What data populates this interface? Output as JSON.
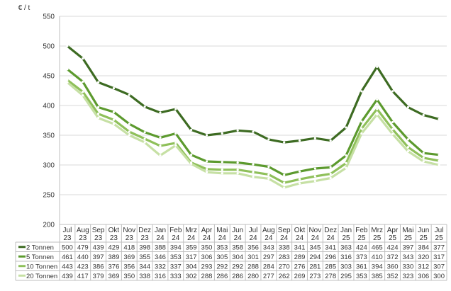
{
  "chart_data": {
    "type": "line",
    "ylabel": "€ / t",
    "ylim": [
      200,
      550
    ],
    "yticks": [
      200,
      250,
      300,
      350,
      400,
      450,
      500,
      550
    ],
    "grid": true,
    "legend": "data-table-below",
    "categories": [
      [
        "Jul",
        "23"
      ],
      [
        "Aug",
        "23"
      ],
      [
        "Sep",
        "23"
      ],
      [
        "Okt",
        "23"
      ],
      [
        "Nov",
        "23"
      ],
      [
        "Dez",
        "23"
      ],
      [
        "Jan",
        "24"
      ],
      [
        "Feb",
        "24"
      ],
      [
        "Mrz",
        "24"
      ],
      [
        "Apr",
        "24"
      ],
      [
        "Mai",
        "24"
      ],
      [
        "Jun",
        "24"
      ],
      [
        "Jul",
        "24"
      ],
      [
        "Aug",
        "24"
      ],
      [
        "Sep",
        "24"
      ],
      [
        "Okt",
        "24"
      ],
      [
        "Nov",
        "24"
      ],
      [
        "Dez",
        "24"
      ],
      [
        "Jan",
        "25"
      ],
      [
        "Feb",
        "25"
      ],
      [
        "Mrz",
        "25"
      ],
      [
        "Apr",
        "25"
      ],
      [
        "Mai",
        "25"
      ],
      [
        "Jun",
        "25"
      ],
      [
        "Jul",
        "25"
      ]
    ],
    "series": [
      {
        "name": "2 Tonnen",
        "color": "#3d6b22",
        "values": [
          500,
          479,
          439,
          429,
          418,
          398,
          388,
          394,
          359,
          350,
          353,
          358,
          356,
          343,
          338,
          341,
          345,
          341,
          363,
          424,
          465,
          424,
          397,
          384,
          377
        ]
      },
      {
        "name": "5 Tonnen",
        "color": "#5c9a2e",
        "values": [
          461,
          440,
          397,
          389,
          369,
          355,
          346,
          353,
          317,
          306,
          305,
          304,
          301,
          297,
          283,
          289,
          294,
          296,
          316,
          373,
          410,
          372,
          343,
          320,
          317
        ]
      },
      {
        "name": "10 Tonnen",
        "color": "#8fc05a",
        "values": [
          443,
          423,
          386,
          376,
          356,
          344,
          332,
          337,
          304,
          293,
          292,
          292,
          288,
          284,
          270,
          276,
          281,
          285,
          303,
          361,
          394,
          360,
          330,
          312,
          307
        ]
      },
      {
        "name": "20 Tonnen",
        "color": "#c6e0a4",
        "values": [
          439,
          417,
          379,
          369,
          350,
          338,
          316,
          333,
          302,
          288,
          286,
          286,
          280,
          277,
          262,
          269,
          273,
          278,
          295,
          353,
          385,
          352,
          323,
          306,
          300
        ]
      }
    ]
  }
}
